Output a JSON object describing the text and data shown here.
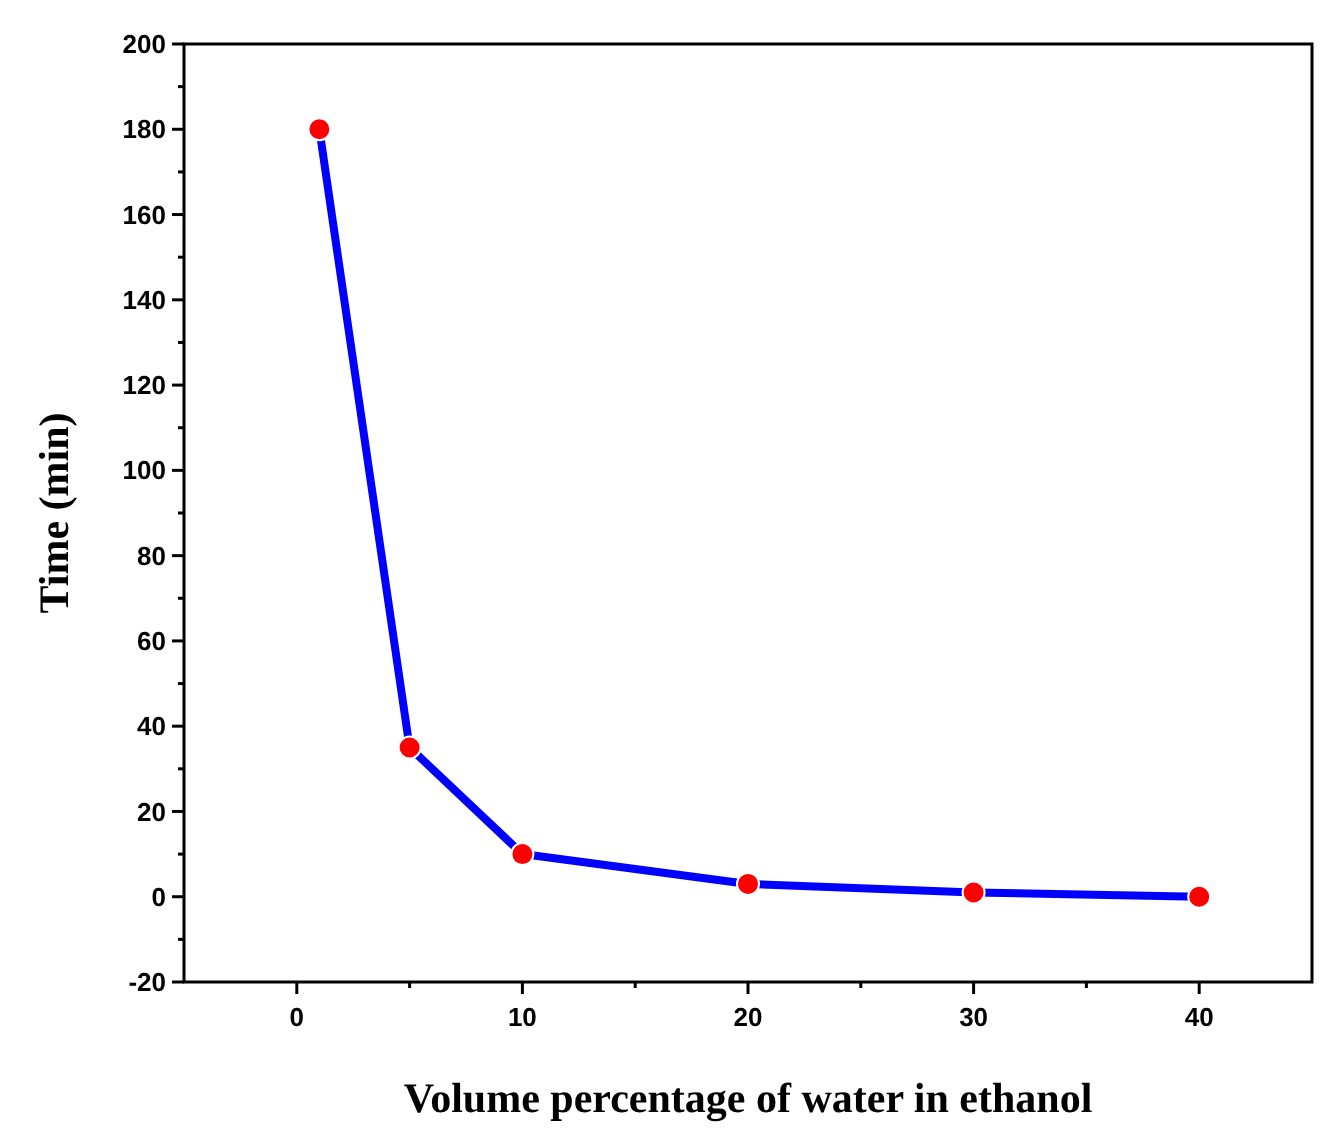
{
  "chart_data": {
    "type": "line",
    "xlabel": "Volume percentage of water in ethanol",
    "ylabel": "Time (min)",
    "x": [
      1,
      5,
      10,
      20,
      30,
      40
    ],
    "series": [
      {
        "color": "#0000ff",
        "marker": "none",
        "values": [
          180,
          35,
          10,
          3,
          1,
          0
        ]
      },
      {
        "type": "scatter",
        "color": "#ff0000",
        "values": [
          180,
          35,
          10,
          3,
          1,
          0
        ]
      }
    ],
    "marker": "circle",
    "line_style": "solid",
    "grid": false,
    "xlim": [
      -5,
      45
    ],
    "ylim": [
      -20,
      200
    ],
    "xticks": [
      0,
      {
        "value": 5,
        "label": null
      },
      10,
      {
        "value": 15,
        "label": null
      },
      20,
      {
        "value": 25,
        "label": null
      },
      30,
      {
        "value": 35,
        "label": null
      },
      40
    ],
    "yticks": [
      -20,
      {
        "value": -10,
        "label": null
      },
      0,
      {
        "value": 10,
        "label": null
      },
      20,
      {
        "value": 30,
        "label": null
      },
      40,
      {
        "value": 50,
        "label": null
      },
      60,
      {
        "value": 70,
        "label": null
      },
      80,
      {
        "value": 90,
        "label": null
      },
      100,
      {
        "value": 110,
        "label": null
      },
      120,
      {
        "value": 130,
        "label": null
      },
      140,
      {
        "value": 150,
        "label": null
      },
      160,
      {
        "value": 170,
        "label": null
      },
      180,
      {
        "value": 190,
        "label": null
      },
      200
    ]
  }
}
